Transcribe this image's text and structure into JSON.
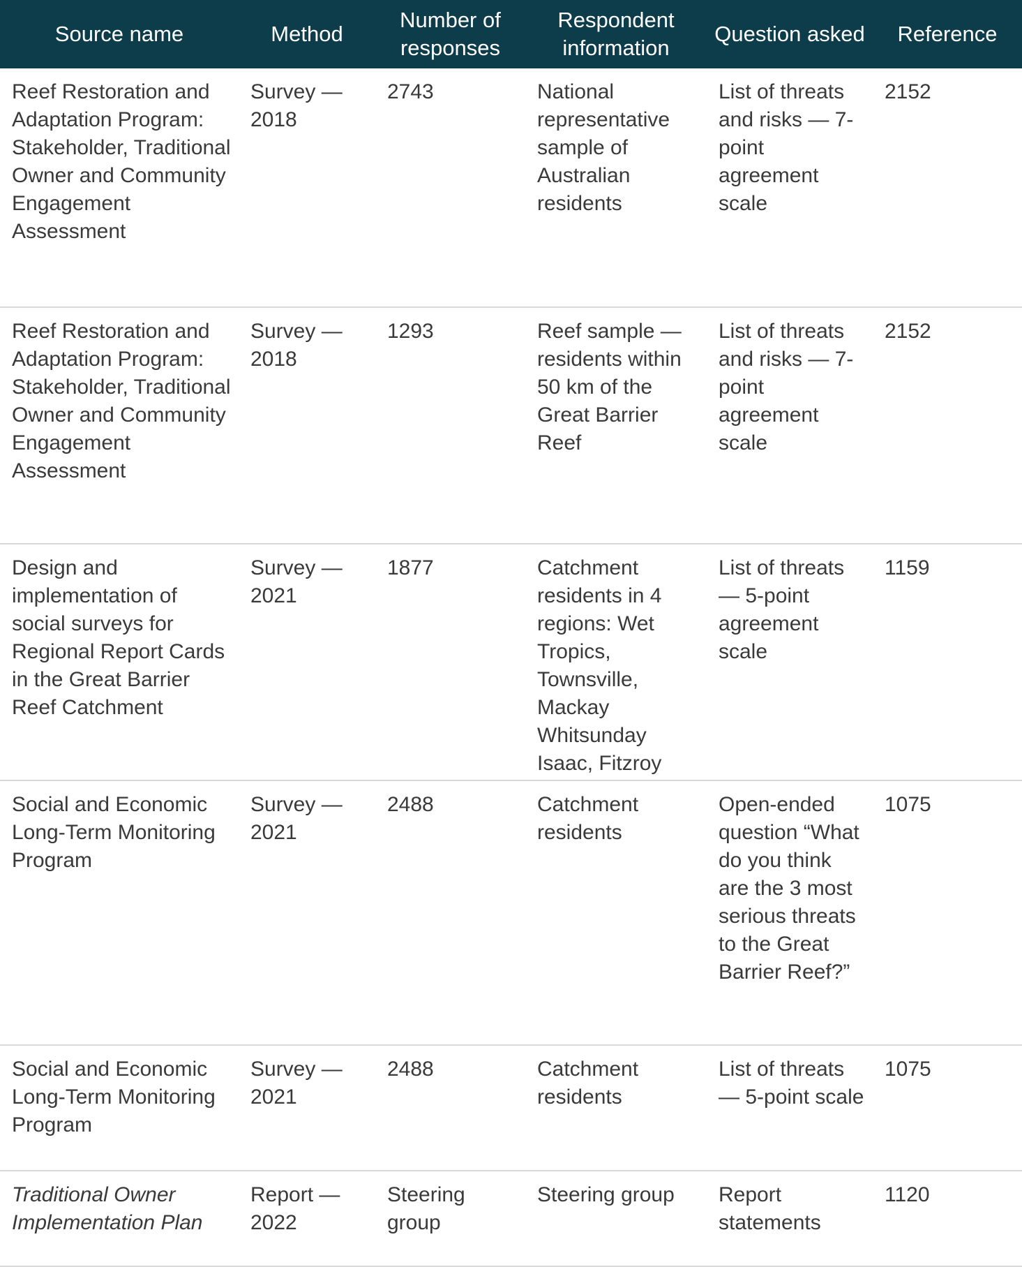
{
  "table": {
    "header": [
      "Source name",
      "Method",
      "Number of responses",
      "Respondent information",
      "Question asked",
      "Reference"
    ],
    "rows": [
      [
        "Reef Restoration and Adaptation Program: Stakeholder, Traditional Owner and Community Engagement Assessment",
        "Survey — 2018",
        "2743",
        "National representative sample of Australian residents",
        "List of threats and risks — 7-point agreement scale",
        "2152"
      ],
      [
        "Reef Restoration and Adaptation Program: Stakeholder, Traditional Owner and Community Engagement Assessment",
        "Survey — 2018",
        "1293",
        "Reef sample — residents within 50 km of the Great Barrier Reef",
        "List of threats and risks — 7-point agreement scale",
        "2152"
      ],
      [
        "Design and implementation of social surveys for Regional Report Cards in the Great Barrier Reef Catchment",
        "Survey — 2021",
        "1877",
        "Catchment residents in 4 regions: Wet Tropics, Townsville, Mackay Whitsunday Isaac, Fitzroy",
        "List of threats — 5-point agreement scale",
        "1159"
      ],
      [
        "Social and Economic Long-Term Monitoring Program",
        "Survey — 2021",
        "2488",
        "Catchment residents",
        "Open-ended question “What do you think are the 3 most serious threats to the Great Barrier Reef?”",
        "1075"
      ],
      [
        "Social and Economic Long-Term Monitoring Program",
        "Survey — 2021",
        "2488",
        "Catchment residents",
        "List of threats — 5-point scale",
        "1075"
      ],
      [
        "Traditional Owner Implementation Plan",
        "Report — 2022",
        "Steering group",
        "Steering group",
        "Report statements",
        "1120"
      ]
    ]
  }
}
